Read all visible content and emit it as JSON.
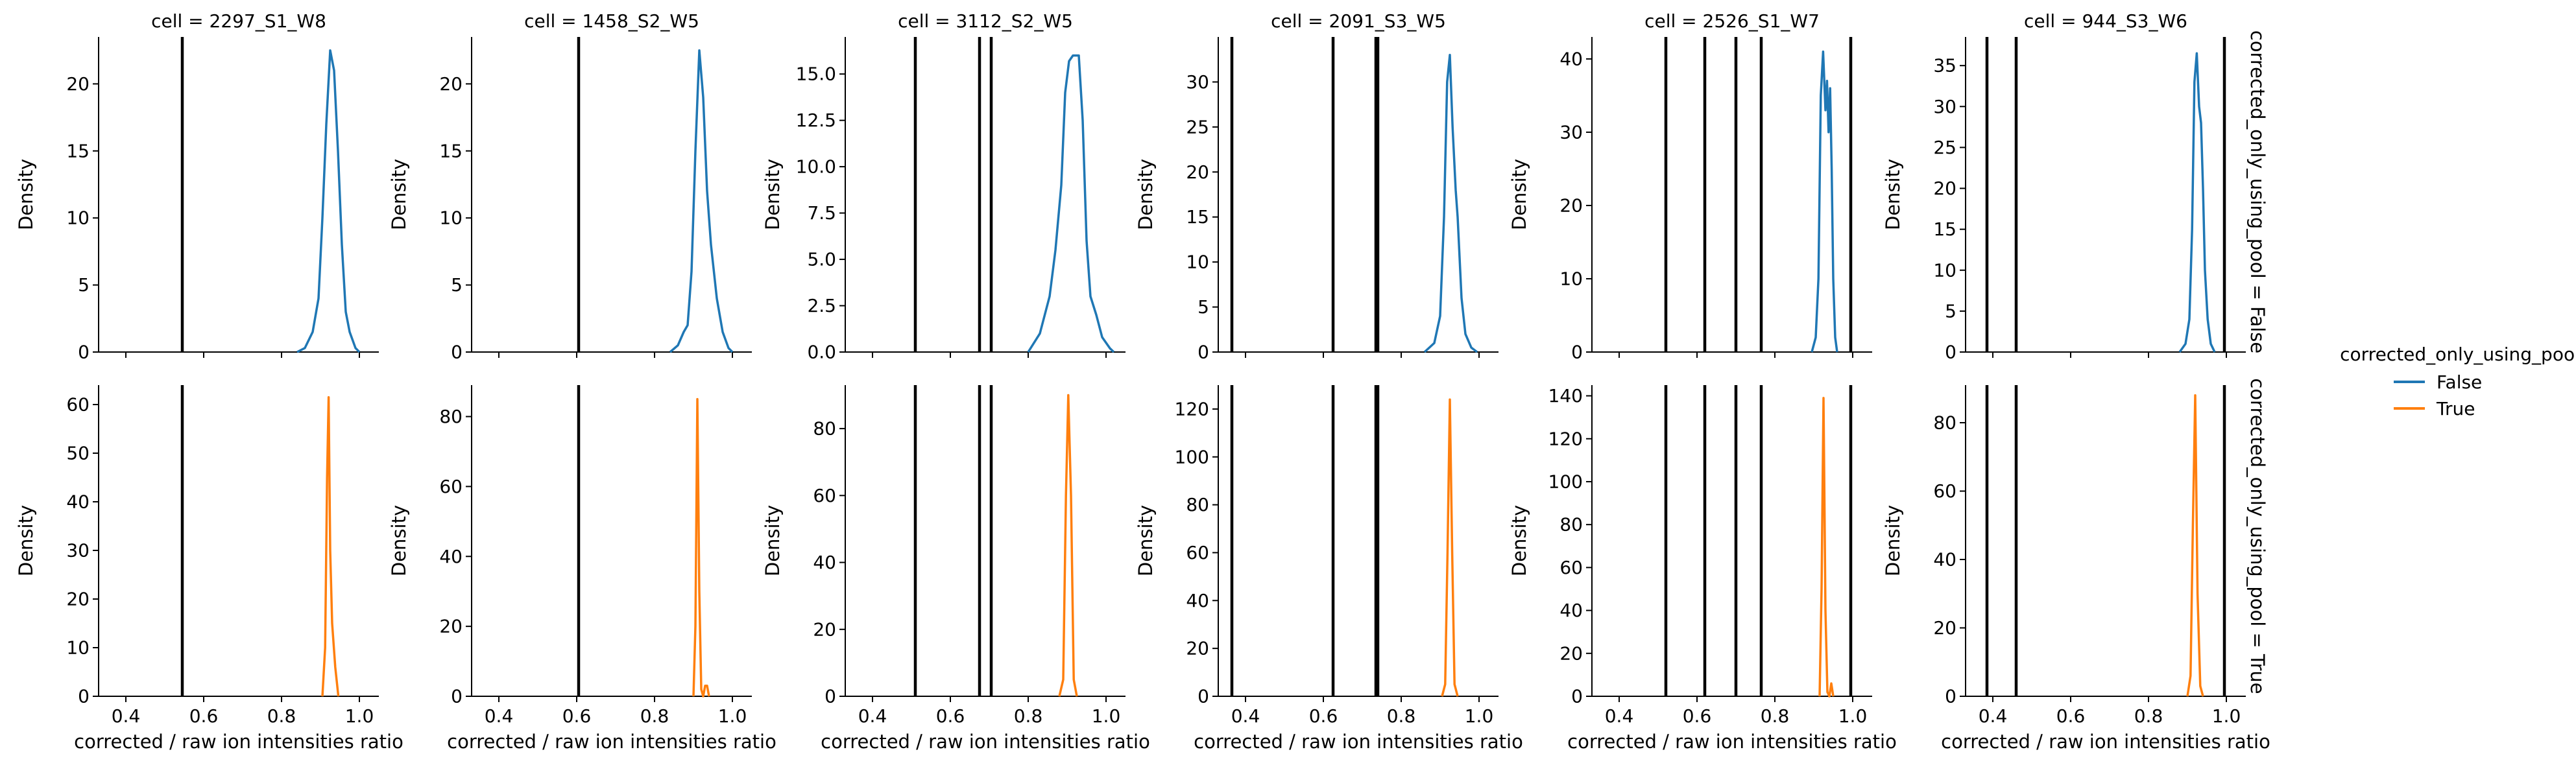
{
  "figure": {
    "legend": {
      "title": "corrected_only_using_pool",
      "placement": "right",
      "entries": [
        {
          "label": "False",
          "color": "#1f77b4"
        },
        {
          "label": "True",
          "color": "#ff7f0e"
        }
      ]
    },
    "row_labels": [
      "corrected_only_using_pool = False",
      "corrected_only_using_pool = True"
    ],
    "xlabel": "corrected / raw ion intensities ratio",
    "ylabel": "Density"
  },
  "chart_data": {
    "type": "line",
    "subtype": "kde density facet grid",
    "rows": [
      "corrected_only_using_pool = False",
      "corrected_only_using_pool = True"
    ],
    "columns": [
      "cell = 2297_S1_W8",
      "cell = 1458_S2_W5",
      "cell = 3112_S2_W5",
      "cell = 2091_S3_W5",
      "cell = 2526_S1_W7",
      "cell = 944_S3_W6"
    ],
    "xlabel": "corrected / raw ion intensities ratio",
    "ylabel": "Density",
    "xlim": [
      0.33,
      1.05
    ],
    "xticks": [
      "0.4",
      "0.6",
      "0.8",
      "1.0"
    ],
    "xtick_values": [
      0.4,
      0.6,
      0.8,
      1.0
    ],
    "grid": false,
    "panels": [
      {
        "col_title": "cell = 2297_S1_W8",
        "vlines": [
          0.545
        ],
        "rows": [
          {
            "ylim": [
              0,
              23.5
            ],
            "yticks": [
              "0",
              "5",
              "10",
              "15",
              "20"
            ],
            "ytick_values": [
              0,
              5,
              10,
              15,
              20
            ],
            "series": [
              {
                "legend": "False",
                "color": "#1f77b4",
                "x": [
                  0.84,
                  0.86,
                  0.88,
                  0.895,
                  0.905,
                  0.915,
                  0.925,
                  0.935,
                  0.945,
                  0.955,
                  0.965,
                  0.975,
                  0.99,
                  1.0
                ],
                "y": [
                  0,
                  0.3,
                  1.5,
                  4,
                  10,
                  17,
                  22.5,
                  21,
                  15,
                  8,
                  3,
                  1.5,
                  0.3,
                  0
                ]
              }
            ]
          },
          {
            "ylim": [
              0,
              64
            ],
            "yticks": [
              "0",
              "10",
              "20",
              "30",
              "40",
              "50",
              "60"
            ],
            "ytick_values": [
              0,
              10,
              20,
              30,
              40,
              50,
              60
            ],
            "series": [
              {
                "legend": "True",
                "color": "#ff7f0e",
                "x": [
                  0.905,
                  0.912,
                  0.917,
                  0.921,
                  0.925,
                  0.93,
                  0.938,
                  0.946
                ],
                "y": [
                  0,
                  10,
                  45,
                  61.5,
                  30,
                  15,
                  6,
                  0
                ]
              }
            ]
          }
        ]
      },
      {
        "col_title": "cell = 1458_S2_W5",
        "vlines": [
          0.605
        ],
        "rows": [
          {
            "ylim": [
              0,
              23.5
            ],
            "yticks": [
              "0",
              "5",
              "10",
              "15",
              "20"
            ],
            "ytick_values": [
              0,
              5,
              10,
              15,
              20
            ],
            "series": [
              {
                "legend": "False",
                "color": "#1f77b4",
                "x": [
                  0.84,
                  0.86,
                  0.875,
                  0.885,
                  0.895,
                  0.905,
                  0.915,
                  0.925,
                  0.935,
                  0.945,
                  0.96,
                  0.975,
                  0.99,
                  1.0
                ],
                "y": [
                  0,
                  0.5,
                  1.5,
                  2,
                  6,
                  15,
                  22.5,
                  19,
                  12,
                  8,
                  4,
                  1.5,
                  0.3,
                  0
                ]
              }
            ]
          },
          {
            "ylim": [
              0,
              89
            ],
            "yticks": [
              "0",
              "20",
              "40",
              "60",
              "80"
            ],
            "ytick_values": [
              0,
              20,
              40,
              60,
              80
            ],
            "series": [
              {
                "legend": "True",
                "color": "#ff7f0e",
                "x": [
                  0.9,
                  0.905,
                  0.91,
                  0.915,
                  0.92,
                  0.925,
                  0.93,
                  0.935,
                  0.94
                ],
                "y": [
                  0,
                  20,
                  85,
                  30,
                  2,
                  0,
                  3,
                  3,
                  0
                ]
              }
            ]
          }
        ]
      },
      {
        "col_title": "cell = 3112_S2_W5",
        "vlines": [
          0.51,
          0.675,
          0.705
        ],
        "rows": [
          {
            "ylim": [
              0,
              17
            ],
            "yticks": [
              "0.0",
              "2.5",
              "5.0",
              "7.5",
              "10.0",
              "12.5",
              "15.0"
            ],
            "ytick_values": [
              0,
              2.5,
              5,
              7.5,
              10,
              12.5,
              15
            ],
            "series": [
              {
                "legend": "False",
                "color": "#1f77b4",
                "x": [
                  0.8,
                  0.83,
                  0.855,
                  0.87,
                  0.885,
                  0.895,
                  0.905,
                  0.915,
                  0.93,
                  0.94,
                  0.95,
                  0.96,
                  0.975,
                  0.99,
                  1.01,
                  1.02
                ],
                "y": [
                  0,
                  1,
                  3,
                  5.5,
                  9,
                  14,
                  15.7,
                  16,
                  16,
                  12.5,
                  6,
                  3,
                  2,
                  0.8,
                  0.2,
                  0
                ]
              }
            ]
          },
          {
            "ylim": [
              0,
              93
            ],
            "yticks": [
              "0",
              "20",
              "40",
              "60",
              "80"
            ],
            "ytick_values": [
              0,
              20,
              40,
              60,
              80
            ],
            "series": [
              {
                "legend": "True",
                "color": "#ff7f0e",
                "x": [
                  0.88,
                  0.89,
                  0.897,
                  0.903,
                  0.91,
                  0.917,
                  0.925
                ],
                "y": [
                  0,
                  5,
                  60,
                  90,
                  60,
                  5,
                  0
                ]
              }
            ]
          }
        ]
      },
      {
        "col_title": "cell = 2091_S3_W5",
        "vlines": [
          0.365,
          0.625,
          0.735,
          0.74
        ],
        "rows": [
          {
            "ylim": [
              0,
              35
            ],
            "yticks": [
              "0",
              "5",
              "10",
              "15",
              "20",
              "25",
              "30"
            ],
            "ytick_values": [
              0,
              5,
              10,
              15,
              20,
              25,
              30
            ],
            "series": [
              {
                "legend": "False",
                "color": "#1f77b4",
                "x": [
                  0.86,
                  0.885,
                  0.9,
                  0.91,
                  0.918,
                  0.925,
                  0.932,
                  0.94,
                  0.945,
                  0.955,
                  0.965,
                  0.98,
                  0.995
                ],
                "y": [
                  0,
                  1,
                  4,
                  15,
                  30,
                  33,
                  25,
                  18,
                  15,
                  6,
                  2,
                  0.5,
                  0
                ]
              }
            ]
          },
          {
            "ylim": [
              0,
              130
            ],
            "yticks": [
              "0",
              "20",
              "40",
              "60",
              "80",
              "100",
              "120"
            ],
            "ytick_values": [
              0,
              20,
              40,
              60,
              80,
              100,
              120
            ],
            "series": [
              {
                "legend": "True",
                "color": "#ff7f0e",
                "x": [
                  0.905,
                  0.913,
                  0.919,
                  0.925,
                  0.931,
                  0.937,
                  0.945
                ],
                "y": [
                  0,
                  5,
                  60,
                  124,
                  60,
                  5,
                  0
                ]
              }
            ]
          }
        ]
      },
      {
        "col_title": "cell = 2526_S1_W7",
        "vlines": [
          0.52,
          0.62,
          0.7,
          0.765,
          0.995
        ],
        "rows": [
          {
            "ylim": [
              0,
              43
            ],
            "yticks": [
              "0",
              "10",
              "20",
              "30",
              "40"
            ],
            "ytick_values": [
              0,
              10,
              20,
              30,
              40
            ],
            "series": [
              {
                "legend": "False",
                "color": "#1f77b4",
                "x": [
                  0.895,
                  0.905,
                  0.912,
                  0.918,
                  0.924,
                  0.93,
                  0.934,
                  0.938,
                  0.942,
                  0.946,
                  0.95,
                  0.955,
                  0.96
                ],
                "y": [
                  0,
                  2,
                  10,
                  35,
                  41,
                  33,
                  37,
                  30,
                  36,
                  25,
                  10,
                  2,
                  0
                ]
              }
            ]
          },
          {
            "ylim": [
              0,
              145
            ],
            "yticks": [
              "0",
              "20",
              "40",
              "60",
              "80",
              "100",
              "120",
              "140"
            ],
            "ytick_values": [
              0,
              20,
              40,
              60,
              80,
              100,
              120,
              140
            ],
            "series": [
              {
                "legend": "True",
                "color": "#ff7f0e",
                "x": [
                  0.915,
                  0.92,
                  0.925,
                  0.93,
                  0.935,
                  0.94,
                  0.945,
                  0.95
                ],
                "y": [
                  0,
                  50,
                  139,
                  40,
                  2,
                  0,
                  6,
                  0
                ]
              }
            ]
          }
        ]
      },
      {
        "col_title": "cell = 944_S3_W6",
        "vlines": [
          0.385,
          0.46,
          0.995
        ],
        "rows": [
          {
            "ylim": [
              0,
              38.5
            ],
            "yticks": [
              "0",
              "5",
              "10",
              "15",
              "20",
              "25",
              "30",
              "35"
            ],
            "ytick_values": [
              0,
              5,
              10,
              15,
              20,
              25,
              30,
              35
            ],
            "series": [
              {
                "legend": "False",
                "color": "#1f77b4",
                "x": [
                  0.88,
                  0.895,
                  0.905,
                  0.912,
                  0.918,
                  0.924,
                  0.93,
                  0.935,
                  0.94,
                  0.945,
                  0.952,
                  0.96,
                  0.97
                ],
                "y": [
                  0,
                  1,
                  4,
                  15,
                  33,
                  36.5,
                  30,
                  28,
                  20,
                  10,
                  4,
                  1,
                  0
                ]
              }
            ]
          },
          {
            "ylim": [
              0,
              91
            ],
            "yticks": [
              "0",
              "20",
              "40",
              "60",
              "80"
            ],
            "ytick_values": [
              0,
              20,
              40,
              60,
              80
            ],
            "series": [
              {
                "legend": "True",
                "color": "#ff7f0e",
                "x": [
                  0.9,
                  0.908,
                  0.914,
                  0.92,
                  0.926,
                  0.933,
                  0.94
                ],
                "y": [
                  0,
                  6,
                  50,
                  88,
                  30,
                  3,
                  0
                ]
              }
            ]
          }
        ]
      }
    ]
  }
}
